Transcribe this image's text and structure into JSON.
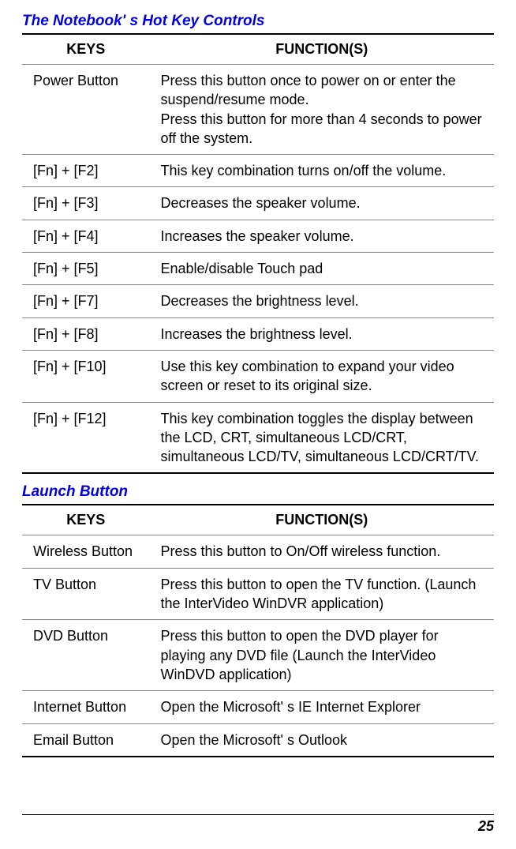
{
  "sections": [
    {
      "title": "The Notebook' s Hot Key Controls",
      "headers": {
        "keys": "KEYS",
        "func": "FUNCTION(S)"
      },
      "rows": [
        {
          "key": "Power Button",
          "func": "Press this button once to power on or enter the suspend/resume mode.\nPress this button for more than 4 seconds to power off the system."
        },
        {
          "key": "[Fn] + [F2]",
          "func": "This key combination turns on/off the volume."
        },
        {
          "key": "[Fn] + [F3]",
          "func": "Decreases the speaker volume."
        },
        {
          "key": "[Fn] + [F4]",
          "func": "Increases the speaker volume."
        },
        {
          "key": "[Fn] + [F5]",
          "func": "Enable/disable Touch pad"
        },
        {
          "key": "[Fn] + [F7]",
          "func": "Decreases the brightness level."
        },
        {
          "key": "[Fn] + [F8]",
          "func": "Increases the brightness level."
        },
        {
          "key": "[Fn] + [F10]",
          "func": "Use this key combination to expand your video screen or reset to its original size."
        },
        {
          "key": "[Fn] + [F12]",
          "func": "This key combination toggles the display between the LCD, CRT, simultaneous LCD/CRT, simultaneous LCD/TV, simultaneous LCD/CRT/TV."
        }
      ]
    },
    {
      "title": "Launch Button",
      "headers": {
        "keys": "KEYS",
        "func": "FUNCTION(S)"
      },
      "rows": [
        {
          "key": "Wireless Button",
          "func": "Press this button to On/Off wireless function."
        },
        {
          "key": "TV Button",
          "func": "Press this button to open the TV function. (Launch the InterVideo WinDVR application)"
        },
        {
          "key": "DVD Button",
          "func": "Press this button to open the DVD player for playing any DVD file (Launch the InterVideo WinDVD application)"
        },
        {
          "key": "Internet Button",
          "func": "Open the Microsoft' s IE Internet Explorer"
        },
        {
          "key": "Email Button",
          "func": "Open the Microsoft' s Outlook"
        }
      ]
    }
  ],
  "pageNumber": "25",
  "styling": {
    "header_color": "#0000e0",
    "header_fontsize": 19,
    "table_fontsize": 18,
    "border_color_thick": "#000000",
    "border_color_thin": "#888888",
    "col_keys_width_pct": 27,
    "col_func_width_pct": 73,
    "body_width": 654,
    "body_height": 1075,
    "background": "#ffffff"
  }
}
